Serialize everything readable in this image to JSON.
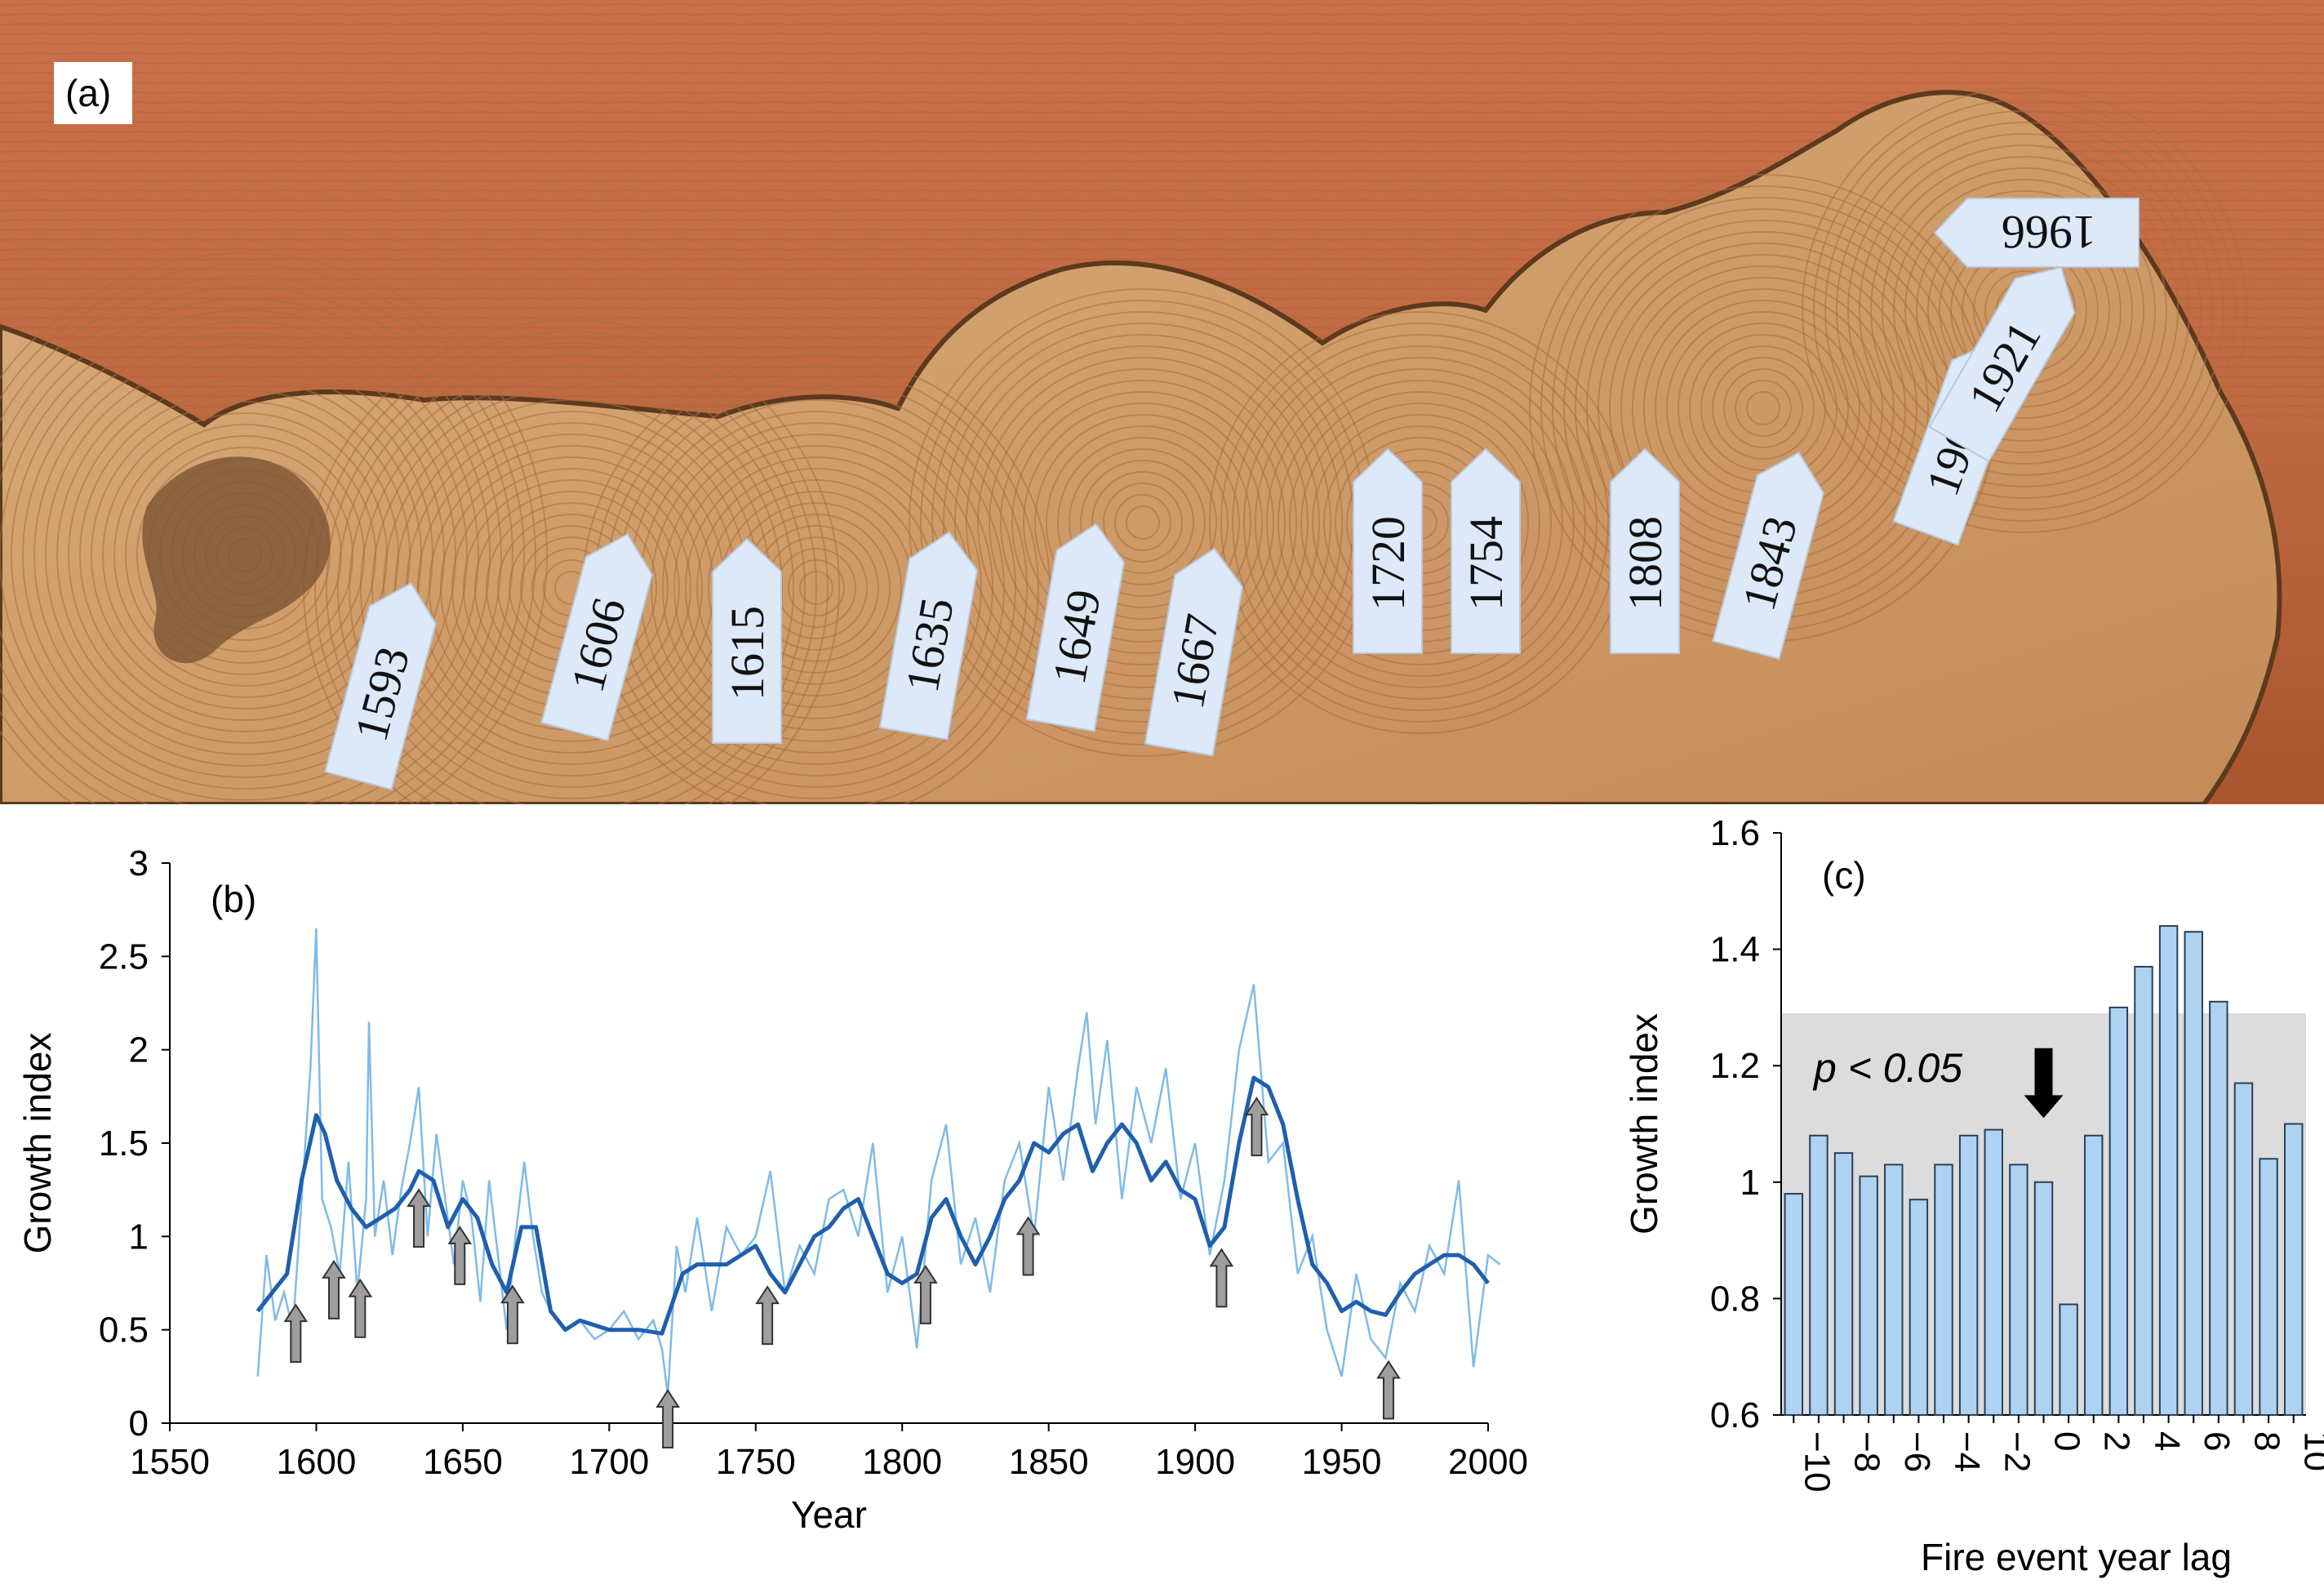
{
  "panel_a": {
    "letter": "(a)",
    "year_tags": [
      "1593",
      "1606",
      "1615",
      "1635",
      "1649",
      "1667",
      "1720",
      "1754",
      "1808",
      "1843",
      "1909",
      "1921",
      "1966"
    ]
  },
  "chart_data": [
    {
      "panel": "(b)",
      "type": "line",
      "xlabel": "Year",
      "ylabel": "Growth index",
      "xlim": [
        1550,
        2000
      ],
      "ylim": [
        0,
        3
      ],
      "xticks": [
        "1550",
        "1600",
        "1650",
        "1700",
        "1750",
        "1800",
        "1850",
        "1900",
        "1950",
        "2000"
      ],
      "yticks": [
        "0",
        "0.5",
        "1",
        "1.5",
        "2",
        "2.5",
        "3"
      ],
      "grid": false,
      "series": [
        {
          "kind": "smoothed",
          "color": "#1f5fae",
          "x": [
            1580,
            1585,
            1590,
            1595,
            1600,
            1603,
            1607,
            1612,
            1617,
            1622,
            1627,
            1632,
            1635,
            1640,
            1645,
            1650,
            1655,
            1660,
            1665,
            1670,
            1675,
            1680,
            1685,
            1690,
            1700,
            1710,
            1718,
            1725,
            1730,
            1740,
            1750,
            1755,
            1760,
            1765,
            1770,
            1775,
            1780,
            1785,
            1790,
            1795,
            1800,
            1805,
            1810,
            1815,
            1820,
            1825,
            1830,
            1835,
            1840,
            1845,
            1850,
            1855,
            1860,
            1865,
            1870,
            1875,
            1880,
            1885,
            1890,
            1895,
            1900,
            1905,
            1910,
            1915,
            1920,
            1925,
            1930,
            1935,
            1940,
            1945,
            1950,
            1955,
            1960,
            1965,
            1970,
            1975,
            1980,
            1985,
            1990,
            1995,
            2000
          ],
          "y": [
            0.6,
            0.7,
            0.8,
            1.3,
            1.65,
            1.55,
            1.3,
            1.15,
            1.05,
            1.1,
            1.15,
            1.25,
            1.35,
            1.3,
            1.05,
            1.2,
            1.1,
            0.85,
            0.7,
            1.05,
            1.05,
            0.6,
            0.5,
            0.55,
            0.5,
            0.5,
            0.48,
            0.8,
            0.85,
            0.85,
            0.95,
            0.8,
            0.7,
            0.85,
            1.0,
            1.05,
            1.15,
            1.2,
            1.0,
            0.8,
            0.75,
            0.8,
            1.1,
            1.2,
            1.0,
            0.85,
            1.0,
            1.2,
            1.3,
            1.5,
            1.45,
            1.55,
            1.6,
            1.35,
            1.5,
            1.6,
            1.5,
            1.3,
            1.4,
            1.25,
            1.2,
            0.95,
            1.05,
            1.5,
            1.85,
            1.8,
            1.6,
            1.2,
            0.85,
            0.75,
            0.6,
            0.65,
            0.6,
            0.58,
            0.7,
            0.8,
            0.85,
            0.9,
            0.9,
            0.85,
            0.75
          ]
        },
        {
          "kind": "annual",
          "color": "#7fbbe8",
          "x": [
            1580,
            1583,
            1586,
            1589,
            1592,
            1595,
            1598,
            1600,
            1602,
            1605,
            1608,
            1611,
            1614,
            1617,
            1618,
            1620,
            1623,
            1626,
            1629,
            1632,
            1635,
            1638,
            1641,
            1644,
            1647,
            1650,
            1653,
            1656,
            1659,
            1662,
            1665,
            1668,
            1671,
            1674,
            1677,
            1680,
            1685,
            1690,
            1695,
            1700,
            1705,
            1710,
            1715,
            1718,
            1720,
            1723,
            1726,
            1730,
            1735,
            1740,
            1745,
            1750,
            1755,
            1760,
            1765,
            1770,
            1775,
            1780,
            1785,
            1790,
            1795,
            1800,
            1805,
            1810,
            1815,
            1820,
            1825,
            1830,
            1835,
            1840,
            1845,
            1850,
            1855,
            1860,
            1863,
            1866,
            1870,
            1875,
            1880,
            1885,
            1890,
            1895,
            1900,
            1905,
            1910,
            1915,
            1920,
            1925,
            1930,
            1935,
            1940,
            1945,
            1950,
            1955,
            1960,
            1965,
            1970,
            1975,
            1980,
            1985,
            1990,
            1995,
            2000,
            2004
          ],
          "y": [
            0.25,
            0.9,
            0.55,
            0.7,
            0.5,
            1.2,
            1.9,
            2.65,
            1.2,
            1.05,
            0.8,
            1.4,
            0.7,
            1.2,
            2.15,
            1.0,
            1.3,
            0.9,
            1.25,
            1.5,
            1.8,
            1.0,
            1.55,
            1.2,
            0.85,
            1.3,
            1.1,
            0.65,
            1.3,
            0.9,
            0.5,
            1.0,
            1.4,
            1.0,
            0.7,
            0.6,
            0.5,
            0.55,
            0.45,
            0.5,
            0.6,
            0.45,
            0.55,
            0.4,
            0.15,
            0.95,
            0.7,
            1.1,
            0.6,
            1.05,
            0.9,
            1.0,
            1.35,
            0.7,
            0.95,
            0.8,
            1.2,
            1.25,
            1.0,
            1.5,
            0.7,
            1.0,
            0.4,
            1.3,
            1.6,
            0.85,
            1.1,
            0.7,
            1.3,
            1.5,
            1.0,
            1.8,
            1.3,
            1.9,
            2.2,
            1.6,
            2.05,
            1.2,
            1.8,
            1.5,
            1.9,
            1.2,
            1.5,
            0.9,
            1.3,
            2.0,
            2.35,
            1.4,
            1.5,
            0.8,
            1.0,
            0.5,
            0.25,
            0.8,
            0.45,
            0.35,
            0.75,
            0.6,
            0.95,
            0.8,
            1.3,
            0.3,
            0.9,
            0.85
          ]
        }
      ],
      "fire_years": [
        1593,
        1606,
        1615,
        1635,
        1649,
        1667,
        1720,
        1754,
        1808,
        1843,
        1909,
        1921,
        1966
      ]
    },
    {
      "panel": "(c)",
      "type": "bar",
      "xlabel": "Fire event year lag",
      "ylabel": "Growth index",
      "ylim": [
        0.6,
        1.6
      ],
      "yticks": [
        "0.6",
        "0.8",
        "1",
        "1.2",
        "1.4",
        "1.6"
      ],
      "xticks": [
        "−10",
        "−8",
        "−6",
        "−4",
        "−2",
        "0",
        "2",
        "4",
        "6",
        "8",
        "10"
      ],
      "categories": [
        -10,
        -9,
        -8,
        -7,
        -6,
        -5,
        -4,
        -3,
        -2,
        -1,
        0,
        1,
        2,
        3,
        4,
        5,
        6,
        7,
        8,
        9,
        10
      ],
      "values": [
        0.98,
        1.08,
        1.05,
        1.01,
        1.03,
        0.97,
        1.03,
        1.08,
        1.09,
        1.03,
        1.0,
        0.79,
        1.08,
        1.3,
        1.37,
        1.44,
        1.43,
        1.31,
        1.17,
        1.04,
        1.1
      ],
      "bar_color": "#aed3f2",
      "significance_band_upper": 1.29,
      "significance_label": "p < 0.05",
      "event_marker_lag": 0
    }
  ]
}
